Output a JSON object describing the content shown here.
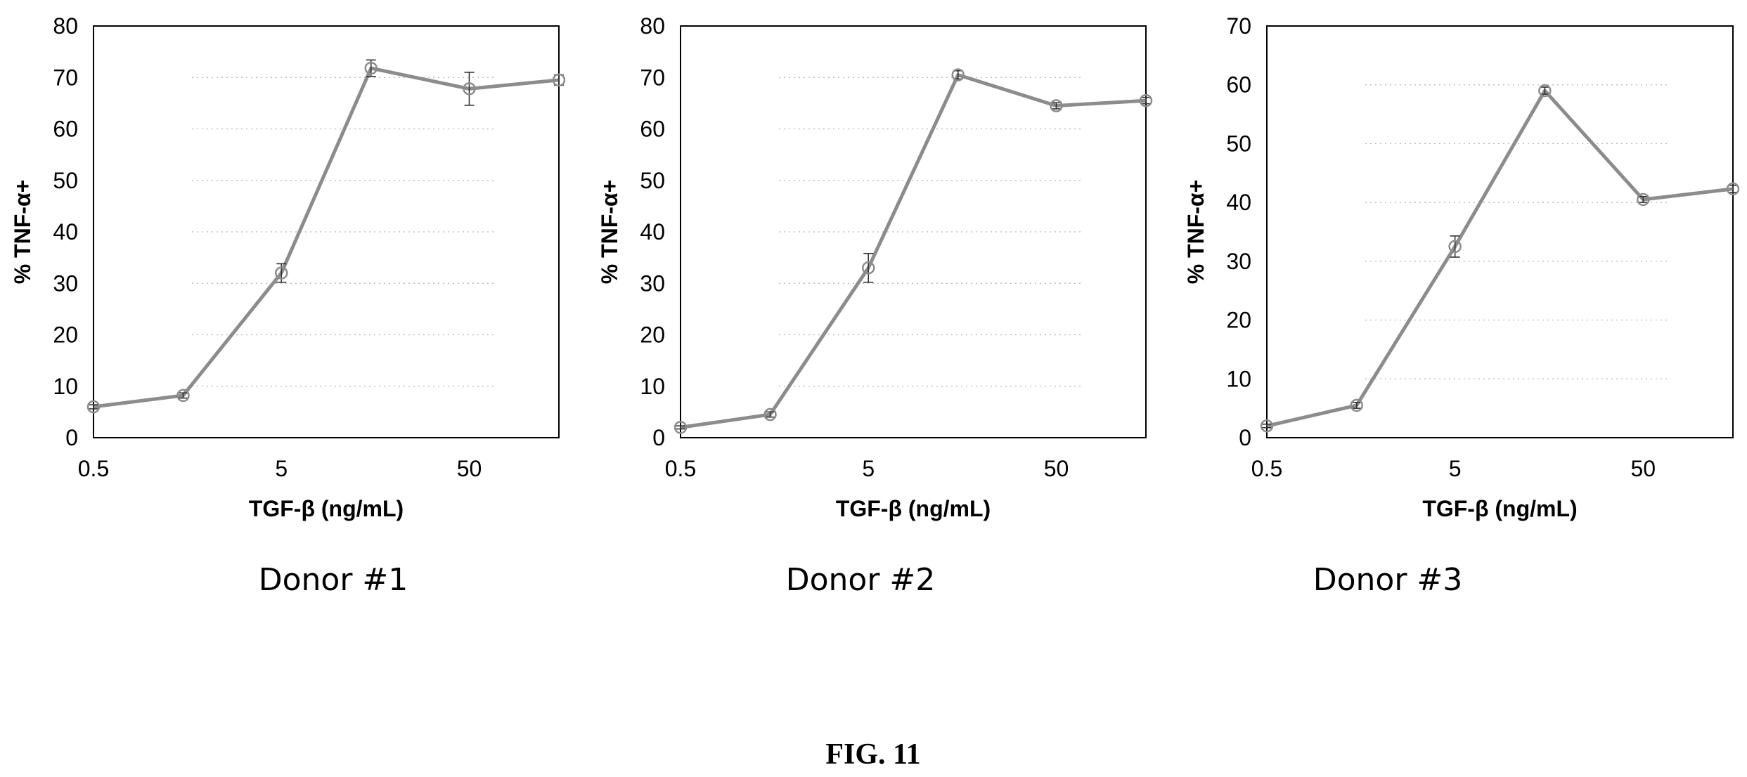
{
  "figure_label": "FIG. 11",
  "colors": {
    "series": "#8c8c8c",
    "axis": "#000000",
    "grid": "#b3b3b3"
  },
  "chart_data": [
    {
      "type": "line",
      "caption": "Donor #1",
      "xlabel": "TGF-β (ng/mL)",
      "ylabel": "% TNF-α+",
      "x_scale": "log",
      "xlim": [
        0.5,
        150
      ],
      "x_ticks": [
        0.5,
        5,
        50
      ],
      "x_tick_labels": [
        "0.5",
        "5",
        "50"
      ],
      "ylim": [
        0,
        80
      ],
      "y_ticks": [
        0,
        10,
        20,
        30,
        40,
        50,
        60,
        70,
        80
      ],
      "grid": "horizontal dotted",
      "x": [
        0.5,
        1.5,
        5,
        15,
        50,
        150
      ],
      "y": [
        6,
        8.2,
        32,
        71.8,
        67.8,
        69.5
      ],
      "error": [
        0.4,
        0.5,
        1.8,
        1.6,
        3.2,
        1.0
      ]
    },
    {
      "type": "line",
      "caption": "Donor #2",
      "xlabel": "TGF-β (ng/mL)",
      "ylabel": "% TNF-α+",
      "x_scale": "log",
      "xlim": [
        0.5,
        150
      ],
      "x_ticks": [
        0.5,
        5,
        50
      ],
      "x_tick_labels": [
        "0.5",
        "5",
        "50"
      ],
      "ylim": [
        0,
        80
      ],
      "y_ticks": [
        0,
        10,
        20,
        30,
        40,
        50,
        60,
        70,
        80
      ],
      "grid": "horizontal dotted",
      "x": [
        0.5,
        1.5,
        5,
        15,
        50,
        150
      ],
      "y": [
        2,
        4.5,
        33,
        70.5,
        64.5,
        65.5
      ],
      "error": [
        0.3,
        0.5,
        2.8,
        0.8,
        0.6,
        0.6
      ]
    },
    {
      "type": "line",
      "caption": "Donor #3",
      "xlabel": "TGF-β (ng/mL)",
      "ylabel": "% TNF-α+",
      "x_scale": "log",
      "xlim": [
        0.5,
        150
      ],
      "x_ticks": [
        0.5,
        5,
        50
      ],
      "x_tick_labels": [
        "0.5",
        "5",
        "50"
      ],
      "ylim": [
        0,
        70
      ],
      "y_ticks": [
        0,
        10,
        20,
        30,
        40,
        50,
        60,
        70
      ],
      "grid": "horizontal dotted",
      "x": [
        0.5,
        1.5,
        5,
        15,
        50,
        150
      ],
      "y": [
        2,
        5.5,
        32.5,
        59,
        40.5,
        42.3
      ],
      "error": [
        0.3,
        0.5,
        1.8,
        0.6,
        0.5,
        0.6
      ]
    }
  ]
}
